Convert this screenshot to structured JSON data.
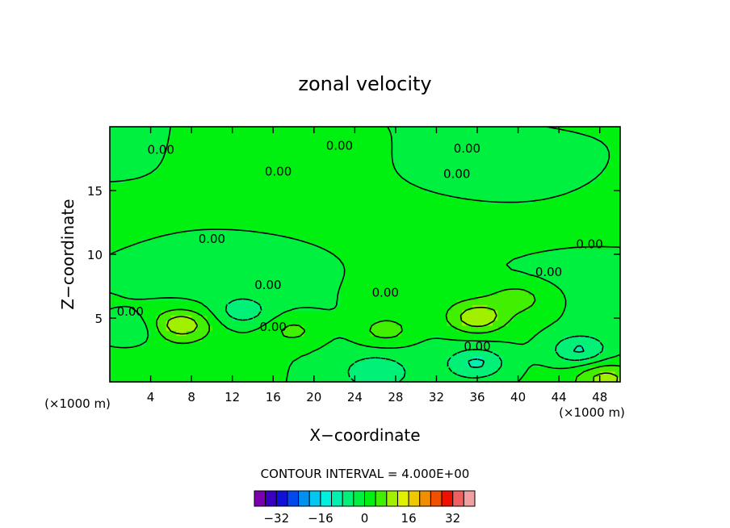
{
  "chart_data": {
    "type": "heatmap",
    "title": "zonal velocity",
    "xlabel": "X−coordinate",
    "ylabel": "Z−coordinate",
    "x_unit_label_left": "(×1000 m)",
    "x_unit_label_right": "(×1000 m)",
    "xlim": [
      0,
      50
    ],
    "ylim": [
      0,
      20
    ],
    "x_ticks": [
      4,
      8,
      12,
      16,
      20,
      24,
      28,
      32,
      36,
      40,
      44,
      48
    ],
    "y_ticks": [
      5,
      10,
      15
    ],
    "contour_interval_text": "CONTOUR INTERVAL = 4.000E+00",
    "contour_label": "0.00",
    "contour_label_positions": [
      {
        "x": 5,
        "y": 18.2
      },
      {
        "x": 22.5,
        "y": 18.5
      },
      {
        "x": 35,
        "y": 18.3
      },
      {
        "x": 16.5,
        "y": 16.5
      },
      {
        "x": 34,
        "y": 16.3
      },
      {
        "x": 10,
        "y": 11.2
      },
      {
        "x": 47,
        "y": 10.8
      },
      {
        "x": 43,
        "y": 8.6
      },
      {
        "x": 15.5,
        "y": 7.6
      },
      {
        "x": 27,
        "y": 7.0
      },
      {
        "x": 2,
        "y": 5.5
      },
      {
        "x": 16,
        "y": 4.3
      },
      {
        "x": 36,
        "y": 2.8
      }
    ],
    "colorbar": {
      "colors": [
        "#7a00b0",
        "#3a00c0",
        "#1010d8",
        "#0048f0",
        "#0090f0",
        "#00c8f0",
        "#00f0e0",
        "#00f0b0",
        "#00f078",
        "#00f040",
        "#00f010",
        "#40f000",
        "#a0f000",
        "#e0f000",
        "#f0c800",
        "#f09000",
        "#f05000",
        "#f01000",
        "#f06060",
        "#f0a0a0"
      ],
      "tick_labels": [
        "−32",
        "−16",
        "0",
        "16",
        "32"
      ],
      "tick_values": [
        -32,
        -16,
        0,
        16,
        32
      ],
      "range": [
        -40,
        40
      ]
    },
    "levels": [
      -16,
      -12,
      -8,
      -4,
      0,
      4,
      8,
      12,
      16
    ],
    "level_colors": {
      "-16": "#00f0e0",
      "-12": "#00f0b0",
      "-8": "#00f078",
      "-4": "#00f040",
      "0": "#00f010",
      "4": "#40f000",
      "8": "#a0f000",
      "12": "#e0f000"
    },
    "features": [
      {
        "label": "positive core",
        "x": 7,
        "y": 4.5,
        "value": 10
      },
      {
        "label": "positive core",
        "x": 36,
        "y": 5,
        "value": 10
      },
      {
        "label": "positive cell",
        "x": 27,
        "y": 4,
        "value": 6
      },
      {
        "label": "positive cell",
        "x": 18,
        "y": 4,
        "value": 5
      },
      {
        "label": "positive cell",
        "x": 40,
        "y": 6.5,
        "value": 5
      },
      {
        "label": "negative cell",
        "x": 13,
        "y": 5.5,
        "value": -6
      },
      {
        "label": "negative cell",
        "x": 2,
        "y": 4,
        "value": -5
      },
      {
        "label": "negative cell",
        "x": 36,
        "y": 1.5,
        "value": -8
      },
      {
        "label": "negative cell",
        "x": 46,
        "y": 2.5,
        "value": -9
      },
      {
        "label": "negative cell",
        "x": 26,
        "y": 0.8,
        "value": -6
      },
      {
        "label": "positive cell",
        "x": 48.5,
        "y": 0.3,
        "value": 8
      }
    ]
  }
}
